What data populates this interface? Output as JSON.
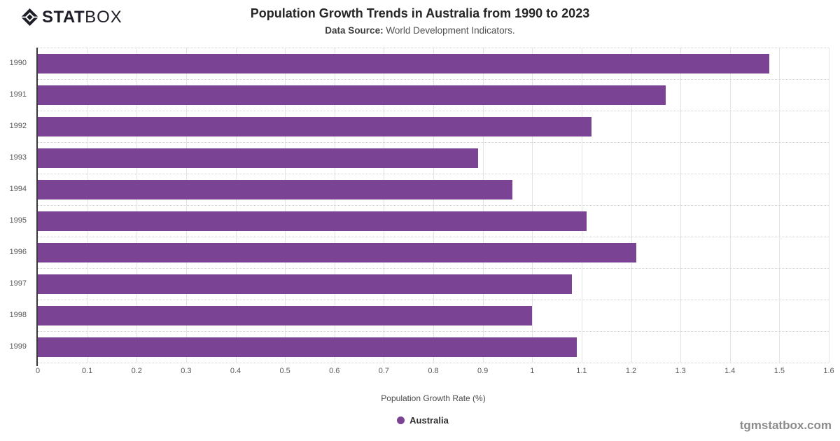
{
  "logo": {
    "stat": "STAT",
    "box": "BOX"
  },
  "header": {
    "title": "Population Growth Trends in Australia from 1990 to 2023",
    "subtitle_label": "Data Source:",
    "subtitle_text": "World Development Indicators."
  },
  "chart_data": {
    "type": "bar",
    "orientation": "horizontal",
    "title": "Population Growth Trends in Australia from 1990 to 2023",
    "categories": [
      "1990",
      "1991",
      "1992",
      "1993",
      "1994",
      "1995",
      "1996",
      "1997",
      "1998",
      "1999"
    ],
    "series": [
      {
        "name": "Australia",
        "values": [
          1.48,
          1.27,
          1.12,
          0.89,
          0.96,
          1.11,
          1.21,
          1.08,
          1.0,
          1.09
        ]
      }
    ],
    "xlabel": "Population Growth Rate (%)",
    "ylabel": "",
    "xlim": [
      0,
      1.6
    ],
    "xtick_labels": [
      "0",
      "0.1",
      "0.2",
      "0.3",
      "0.4",
      "0.5",
      "0.6",
      "0.7",
      "0.8",
      "0.9",
      "1",
      "1.1",
      "1.2",
      "1.3",
      "1.4",
      "1.5",
      "1.6"
    ],
    "bar_color": "#7a4394",
    "grid": true,
    "legend_position": "bottom"
  },
  "watermark": "tgmstatbox.com",
  "colors": {
    "bar": "#7a4394",
    "axis_line": "#3a3a3a",
    "grid_vertical": "#e4e4e4",
    "grid_dotted": "#d4d4d4",
    "tick_text": "#595959",
    "logo_text": "#1d1d27",
    "watermark_text": "#8b8b8b"
  }
}
